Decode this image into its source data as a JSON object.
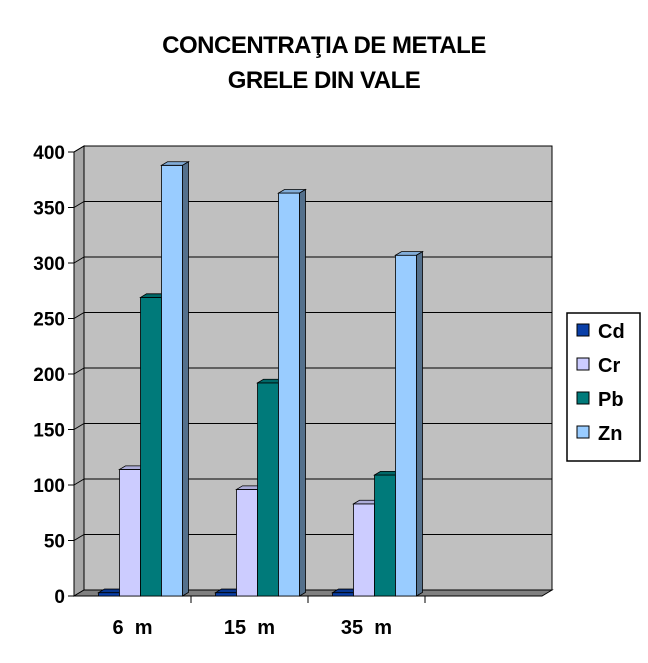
{
  "chart_data": {
    "type": "bar",
    "title_lines": [
      "CONCENTRAŢIA DE METALE",
      "GRELE DIN VALE"
    ],
    "categories": [
      "6  m",
      "15  m",
      "35  m"
    ],
    "series": [
      {
        "name": "Cd",
        "values": [
          3,
          3,
          3
        ],
        "color": "#0a3fa8"
      },
      {
        "name": "Cr",
        "values": [
          114,
          96,
          83
        ],
        "color": "#ccccff"
      },
      {
        "name": "Pb",
        "values": [
          269,
          192,
          109
        ],
        "color": "#007a7a"
      },
      {
        "name": "Zn",
        "values": [
          388,
          363,
          307
        ],
        "color": "#99ccff"
      }
    ],
    "y_ticks": [
      "0",
      "50",
      "100",
      "150",
      "200",
      "250",
      "300",
      "350",
      "400"
    ],
    "ylim": [
      0,
      400
    ],
    "grid": true,
    "legend_position": "right",
    "plot_background": "#c0c0c0"
  }
}
